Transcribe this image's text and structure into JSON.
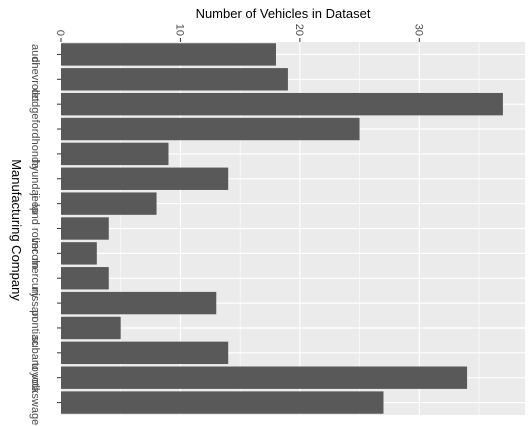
{
  "chart_data": {
    "type": "bar",
    "orientation": "horizontal",
    "categories": [
      "audi",
      "chevrolet",
      "dodge",
      "ford",
      "honda",
      "hyundai",
      "jeep",
      "land rover",
      "lincoln",
      "mercury",
      "nissan",
      "pontiac",
      "subaru",
      "toyota",
      "volkswagen"
    ],
    "values": [
      18,
      19,
      37,
      25,
      9,
      14,
      8,
      4,
      3,
      4,
      13,
      5,
      14,
      34,
      27
    ],
    "xlabel": "Number of Vehicles in Dataset",
    "ylabel": "Manufacturing Company",
    "xlim": [
      0,
      38.85
    ],
    "xticks": [
      0,
      10,
      20,
      30
    ],
    "xtick_labels": [
      "0",
      "10",
      "20",
      "30"
    ],
    "grid": true,
    "colors": {
      "bar": "#595959",
      "panel": "#ebebeb",
      "grid": "#ffffff"
    }
  }
}
